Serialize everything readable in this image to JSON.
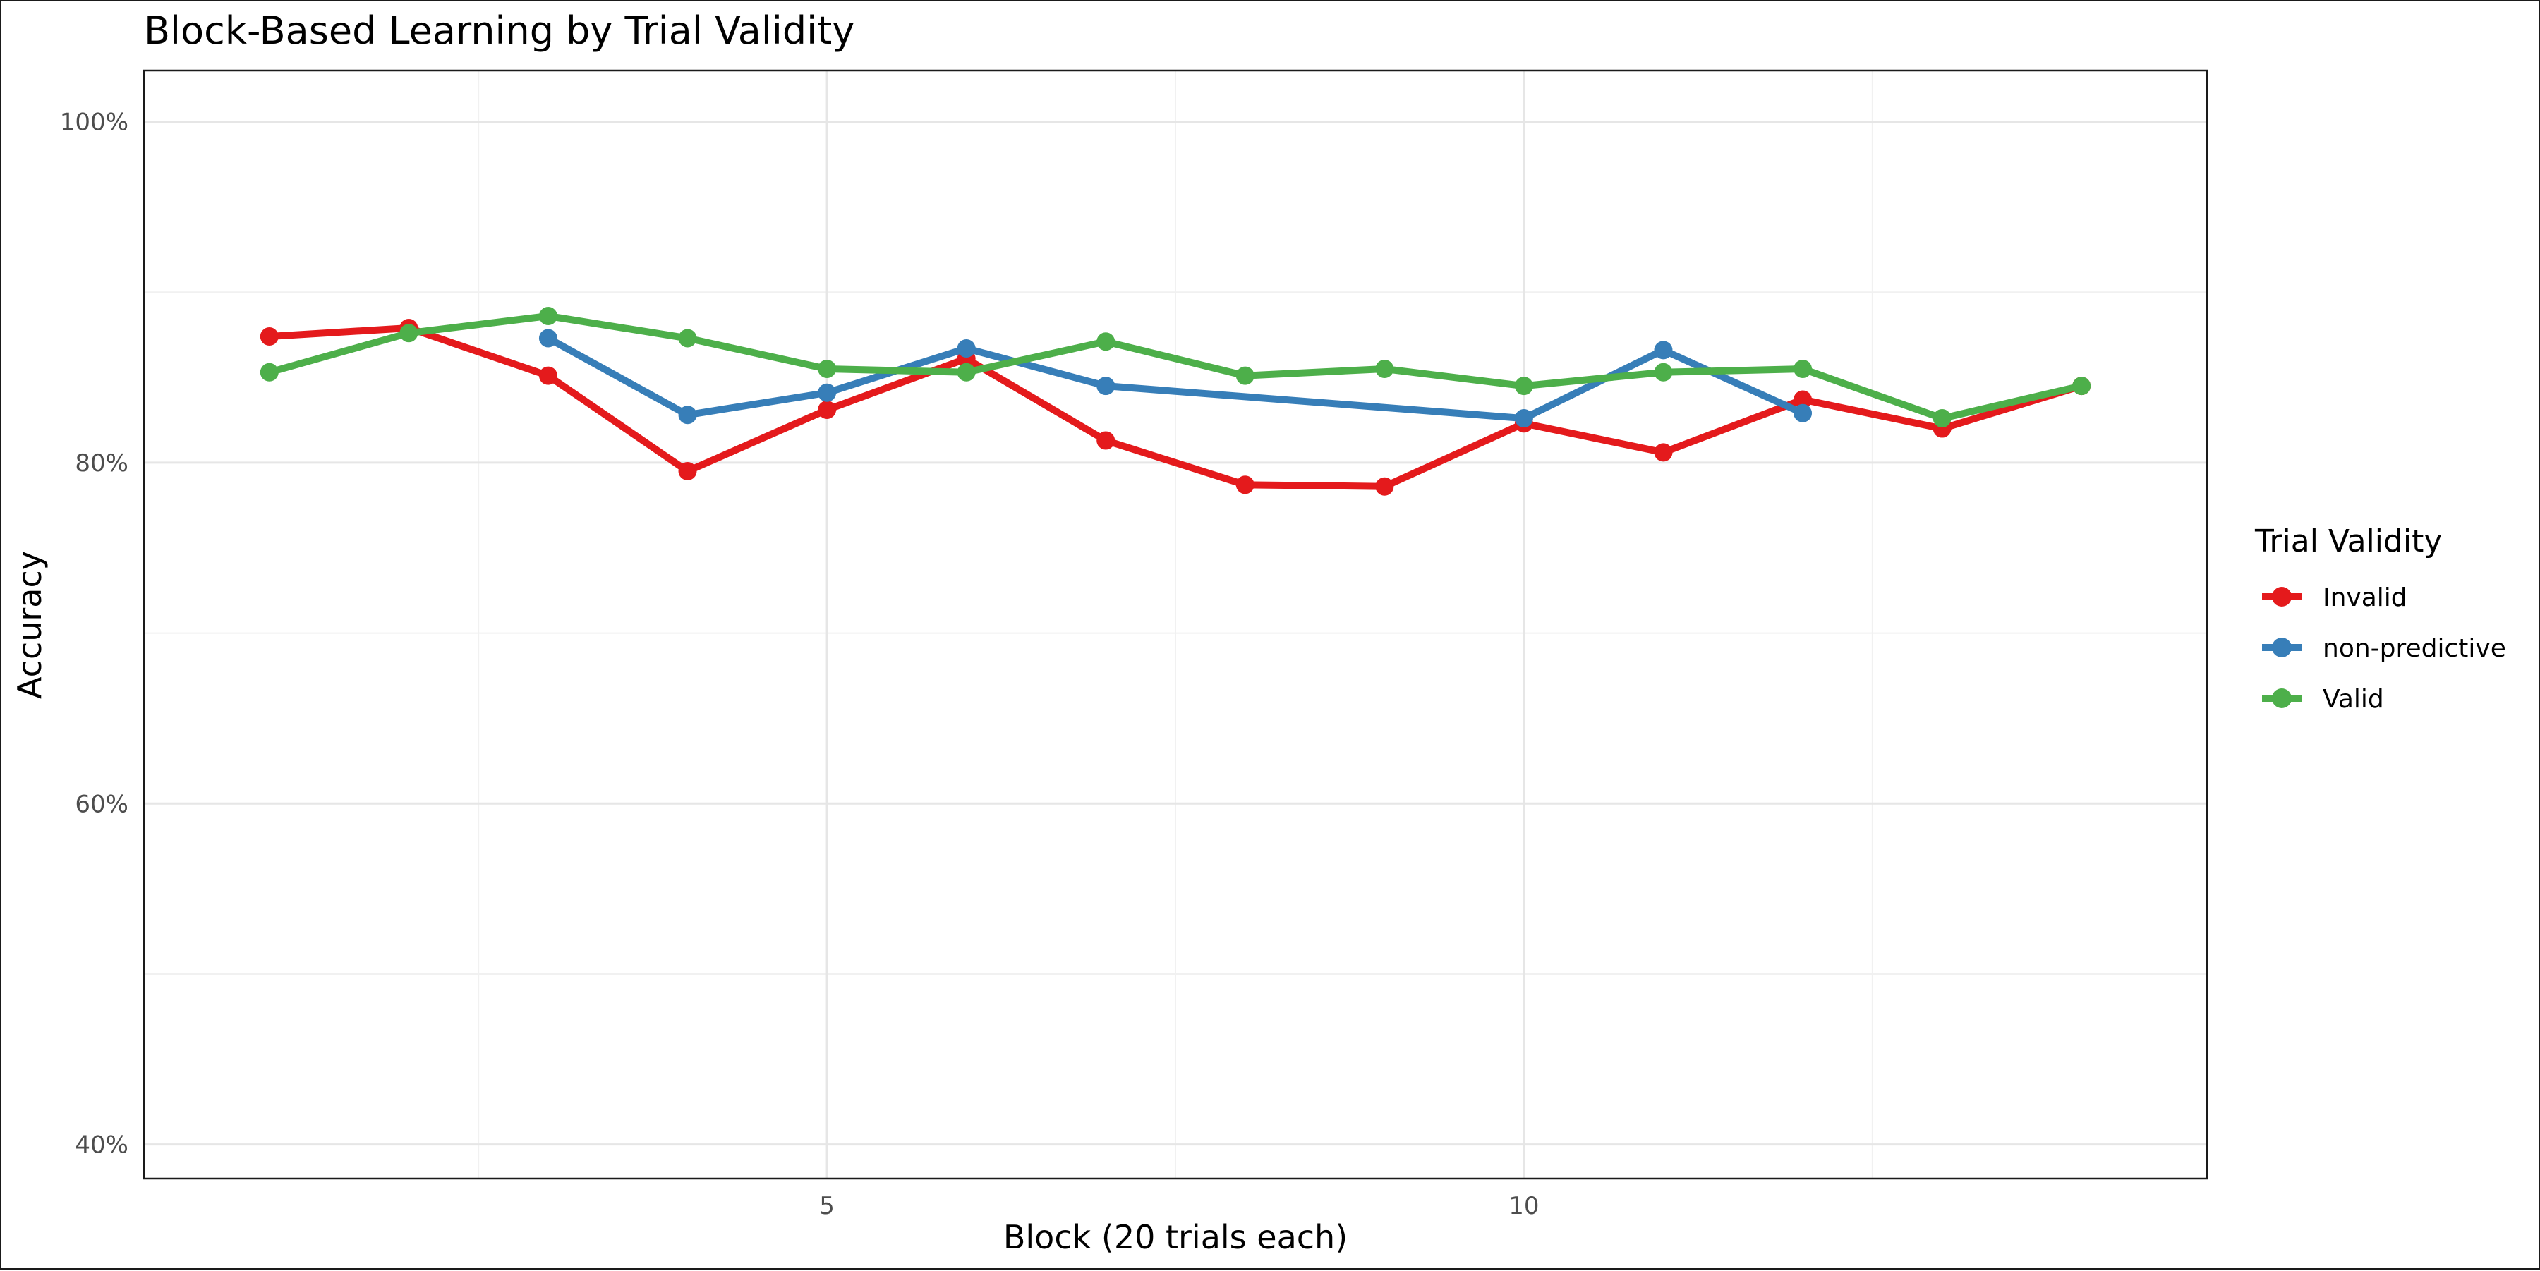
{
  "chart_data": {
    "type": "line",
    "title": "Block-Based Learning by Trial Validity",
    "xlabel": "Block (20 trials each)",
    "ylabel": "Accuracy",
    "xlim": [
      0.1,
      14.9
    ],
    "ylim": [
      0.38,
      1.03
    ],
    "x_ticks": [
      5,
      10
    ],
    "x_tick_labels": [
      "5",
      "10"
    ],
    "x_minor": [
      2.5,
      7.5,
      12.5
    ],
    "y_ticks": [
      0.4,
      0.6,
      0.8,
      1.0
    ],
    "y_tick_labels": [
      "40%",
      "60%",
      "80%",
      "100%"
    ],
    "y_minor": [
      0.5,
      0.7,
      0.9
    ],
    "grid": true,
    "legend": {
      "title": "Trial Validity",
      "position": "right"
    },
    "series": [
      {
        "name": "Invalid",
        "color": "#e41a1c",
        "x": [
          1,
          2,
          3,
          4,
          5,
          6,
          7,
          8,
          9,
          10,
          11,
          12,
          13,
          14
        ],
        "values": [
          0.874,
          0.879,
          0.851,
          0.795,
          0.831,
          0.861,
          0.813,
          0.787,
          0.786,
          0.823,
          0.806,
          0.837,
          0.82,
          0.845
        ]
      },
      {
        "name": "non-predictive",
        "color": "#377eb8",
        "x": [
          3,
          4,
          5,
          6,
          7,
          10,
          11,
          12
        ],
        "values": [
          0.873,
          0.828,
          0.841,
          0.867,
          0.845,
          0.826,
          0.866,
          0.829
        ]
      },
      {
        "name": "Valid",
        "color": "#4daf4a",
        "x": [
          1,
          2,
          3,
          4,
          5,
          6,
          7,
          8,
          9,
          10,
          11,
          12,
          13,
          14
        ],
        "values": [
          0.853,
          0.876,
          0.886,
          0.873,
          0.855,
          0.853,
          0.871,
          0.851,
          0.855,
          0.845,
          0.853,
          0.855,
          0.826,
          0.845
        ]
      }
    ]
  }
}
